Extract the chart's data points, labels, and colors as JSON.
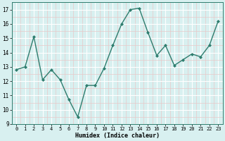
{
  "x": [
    0,
    1,
    2,
    3,
    4,
    5,
    6,
    7,
    8,
    9,
    10,
    11,
    12,
    13,
    14,
    15,
    16,
    17,
    18,
    19,
    20,
    21,
    22,
    23
  ],
  "y": [
    12.8,
    13.0,
    15.1,
    12.1,
    12.8,
    12.1,
    10.7,
    9.5,
    11.7,
    11.7,
    12.9,
    14.5,
    16.0,
    17.0,
    17.1,
    15.4,
    13.8,
    14.5,
    13.1,
    13.5,
    13.9,
    13.7,
    14.5,
    16.2
  ],
  "xlabel": "Humidex (Indice chaleur)",
  "ylim": [
    9,
    17.5
  ],
  "xlim": [
    -0.5,
    23.5
  ],
  "yticks": [
    9,
    10,
    11,
    12,
    13,
    14,
    15,
    16,
    17
  ],
  "xticks": [
    0,
    1,
    2,
    3,
    4,
    5,
    6,
    7,
    8,
    9,
    10,
    11,
    12,
    13,
    14,
    15,
    16,
    17,
    18,
    19,
    20,
    21,
    22,
    23
  ],
  "line_color": "#2e7d6e",
  "marker_color": "#2e7d6e",
  "bg_color": "#d8f0f0",
  "major_grid_color": "#ffffff",
  "minor_grid_color": "#e8c8c8"
}
